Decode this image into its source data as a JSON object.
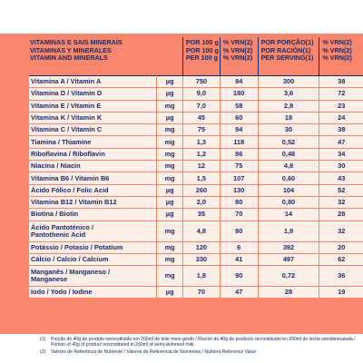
{
  "header": {
    "name_lines": [
      "VITAMINAS E SAIS MINERAIS",
      "VITAMINAS Y MINERALES",
      "VITAMIN AND MINERALS"
    ],
    "per100_lines": [
      "POR 100 g",
      "POR 100 g",
      "PER 100 g"
    ],
    "vrn_lines": [
      "% VRN(2)",
      "% VRN(2)",
      "% VRN(2)"
    ],
    "portion_lines": [
      "POR PORÇÃO(1)",
      "POR RACIÓN(1)",
      "PER SERVING(1)"
    ],
    "vrn2_lines": [
      "% VRN(2)",
      "% VRN(2)",
      "% VRN(2)"
    ]
  },
  "rows": [
    {
      "name": "Vitamina A / Vitamin A",
      "unit": "µg",
      "per100": "750",
      "vrn": "94",
      "portion": "300",
      "vrn2": "38"
    },
    {
      "name": "Vitamina D / Vitamin D",
      "unit": "µg",
      "per100": "9,0",
      "vrn": "180",
      "portion": "3,6",
      "vrn2": "72"
    },
    {
      "name": "Vitamina E / Vitamin E",
      "unit": "mg",
      "per100": "7,0",
      "vrn": "58",
      "portion": "2,8",
      "vrn2": "23"
    },
    {
      "name": "Vitamina K / Vitamin K",
      "unit": "µg",
      "per100": "45",
      "vrn": "60",
      "portion": "18",
      "vrn2": "24"
    },
    {
      "name": "Vitamina C / Vitamin C",
      "unit": "mg",
      "per100": "75",
      "vrn": "94",
      "portion": "30",
      "vrn2": "38"
    },
    {
      "name": "Tiamina / Thiamine",
      "unit": "mg",
      "per100": "1,3",
      "vrn": "118",
      "portion": "0,52",
      "vrn2": "47"
    },
    {
      "name": "Riboflavina / Riboflavin",
      "unit": "mg",
      "per100": "1,2",
      "vrn": "86",
      "portion": "0,48",
      "vrn2": "34"
    },
    {
      "name": "Niacina / Niacin",
      "unit": "mg",
      "per100": "12",
      "vrn": "75",
      "portion": "4,8",
      "vrn2": "30"
    },
    {
      "name": "Vitamina B6 / Vitamin B6",
      "unit": "mg",
      "per100": "1,5",
      "vrn": "107",
      "portion": "0,60",
      "vrn2": "43"
    },
    {
      "name": "Ácido Fólico / Folic Acid",
      "unit": "µg",
      "per100": "260",
      "vrn": "130",
      "portion": "104",
      "vrn2": "52"
    },
    {
      "name": "Vitamina B12 / Vitamin B12",
      "unit": "µg",
      "per100": "2,0",
      "vrn": "80",
      "portion": "0,80",
      "vrn2": "32"
    },
    {
      "name": "Biotina / Biotin",
      "unit": "µg",
      "per100": "35",
      "vrn": "70",
      "portion": "14",
      "vrn2": "28"
    },
    {
      "name_lines": [
        "Ácido Pantoténico /",
        "Pantothenic Acid"
      ],
      "unit": "mg",
      "per100": "4,8",
      "vrn": "80",
      "portion": "1,9",
      "vrn2": "32",
      "tall": true
    },
    {
      "name": "Potássio / Potasio / Potatium",
      "unit": "mg",
      "per100": "120",
      "vrn": "6",
      "portion": "392",
      "vrn2": "20"
    },
    {
      "name": "Cálcio / Calcio / Calcium",
      "unit": "mg",
      "per100": "330",
      "vrn": "41",
      "portion": "497",
      "vrn2": "62"
    },
    {
      "name_lines": [
        "Manganês / Manganeso /",
        "Manganese"
      ],
      "unit": "mg",
      "per100": "1,8",
      "vrn": "90",
      "portion": "0,72",
      "vrn2": "36",
      "tall": true
    },
    {
      "name": "Iodo / Yodo / Iodine",
      "unit": "µg",
      "per100": "70",
      "vrn": "47",
      "portion": "28",
      "vrn2": "19"
    }
  ],
  "footnotes": [
    {
      "mark": "(1)",
      "text": "Porção de 40g de produto reconstituido em 200ml de leite meio-gordo / Ración de 40g de producto reconstituido en 200ml de leche semidesnatada / Portion of 40g of product reconstituted in 200ml of semi-skimmed milk"
    },
    {
      "mark": "(2)",
      "text": "Valores de Referência de Nutriente / Valores de Referencia de Nutrientes / Nutrient Reference Value"
    }
  ]
}
